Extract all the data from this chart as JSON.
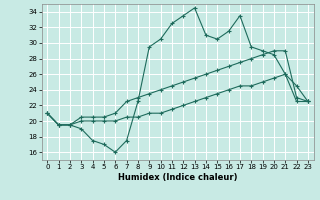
{
  "xlabel": "Humidex (Indice chaleur)",
  "xlim": [
    -0.5,
    23.5
  ],
  "ylim": [
    15.0,
    35.0
  ],
  "yticks": [
    16,
    18,
    20,
    22,
    24,
    26,
    28,
    30,
    32,
    34
  ],
  "xticks": [
    0,
    1,
    2,
    3,
    4,
    5,
    6,
    7,
    8,
    9,
    10,
    11,
    12,
    13,
    14,
    15,
    16,
    17,
    18,
    19,
    20,
    21,
    22,
    23
  ],
  "bg_color": "#c8eae4",
  "line_color": "#1e6b5c",
  "grid_color": "#ffffff",
  "line1_y": [
    21.0,
    19.5,
    19.5,
    19.0,
    17.5,
    17.0,
    16.0,
    17.5,
    22.5,
    29.5,
    30.5,
    32.5,
    33.5,
    34.5,
    31.0,
    30.5,
    31.5,
    33.5,
    29.5,
    29.0,
    28.5,
    26.0,
    24.5,
    22.5
  ],
  "line2_y": [
    21.0,
    19.5,
    19.5,
    20.5,
    20.5,
    20.5,
    21.0,
    22.5,
    23.0,
    23.5,
    24.0,
    24.5,
    25.0,
    25.5,
    26.0,
    26.5,
    27.0,
    27.5,
    28.0,
    28.5,
    29.0,
    29.0,
    23.0,
    22.5
  ],
  "line3_y": [
    21.0,
    19.5,
    19.5,
    20.0,
    20.0,
    20.0,
    20.0,
    20.5,
    20.5,
    21.0,
    21.0,
    21.5,
    22.0,
    22.5,
    23.0,
    23.5,
    24.0,
    24.5,
    24.5,
    25.0,
    25.5,
    26.0,
    22.5,
    22.5
  ]
}
